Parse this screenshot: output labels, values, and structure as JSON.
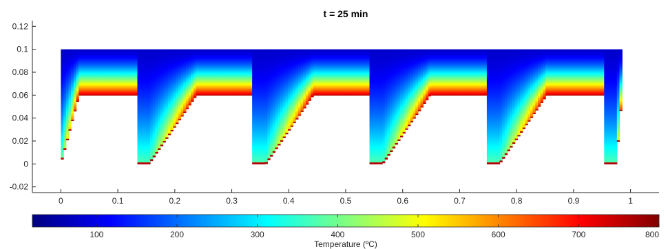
{
  "chart_data": {
    "type": "heatmap",
    "title": "t = 25 min",
    "xlabel": "",
    "ylabel": "",
    "xlim": [
      -0.05,
      1.05
    ],
    "ylim": [
      -0.025,
      0.125
    ],
    "x_ticks": [
      "0",
      "0.1",
      "0.2",
      "0.3",
      "0.4",
      "0.5",
      "0.6",
      "0.7",
      "0.8",
      "0.9",
      "1"
    ],
    "y_ticks": [
      "-0.02",
      "0",
      "0.02",
      "0.04",
      "0.06",
      "0.08",
      "0.1",
      "0.12"
    ],
    "grid": false,
    "domain": {
      "x_range": [
        0,
        0.985
      ],
      "top_y": 0.1,
      "bottom_y": 0
    },
    "hot_teeth": [
      {
        "base": [
          0,
          0.012
        ],
        "top": [
          0.032,
          0.133
        ]
      },
      {
        "base": [
          0.155,
          0.217
        ],
        "top": [
          0.238,
          0.338
        ]
      },
      {
        "base": [
          0.36,
          0.422
        ],
        "top": [
          0.443,
          0.543
        ]
      },
      {
        "base": [
          0.565,
          0.627
        ],
        "top": [
          0.648,
          0.748
        ]
      },
      {
        "base": [
          0.77,
          0.832
        ],
        "top": [
          0.853,
          0.953
        ]
      },
      {
        "base": [
          0.975,
          0.985
        ],
        "top": [
          0.985,
          0.985
        ]
      }
    ],
    "hot_surface_temperature": 760,
    "top_surface_temperature": 80,
    "colorbar": {
      "label": "Temperature (ºC)",
      "range": [
        20,
        800
      ],
      "ticks": [
        "100",
        "200",
        "300",
        "400",
        "500",
        "600",
        "700",
        "800"
      ],
      "colormap": "jet"
    }
  }
}
